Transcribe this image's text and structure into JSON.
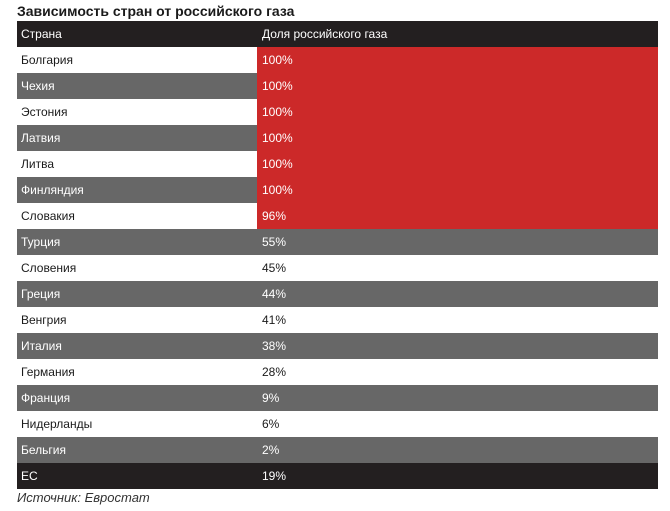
{
  "title": "Зависимость стран от российского газа",
  "header": {
    "country": "Страна",
    "share": "Доля российского газа"
  },
  "rows": [
    {
      "country": "Болгария",
      "share": "100%"
    },
    {
      "country": "Чехия",
      "share": "100%"
    },
    {
      "country": "Эстония",
      "share": "100%"
    },
    {
      "country": "Латвия",
      "share": "100%"
    },
    {
      "country": "Литва",
      "share": "100%"
    },
    {
      "country": "Финляндия",
      "share": "100%"
    },
    {
      "country": "Словакия",
      "share": "96%"
    },
    {
      "country": "Турция",
      "share": "55%"
    },
    {
      "country": "Словения",
      "share": "45%"
    },
    {
      "country": "Греция",
      "share": "44%"
    },
    {
      "country": "Венгрия",
      "share": "41%"
    },
    {
      "country": "Италия",
      "share": "38%"
    },
    {
      "country": "Германия",
      "share": "28%"
    },
    {
      "country": "Франция",
      "share": "9%"
    },
    {
      "country": "Нидерланды",
      "share": "6%"
    },
    {
      "country": "Бельгия",
      "share": "2%"
    }
  ],
  "total": {
    "country": "ЕС",
    "share": "19%"
  },
  "source": "Источник: Евростат",
  "colors": {
    "header_bg": "#231f20",
    "highlight_red": "#cc2929",
    "row_dark": "#676767",
    "row_light": "#ffffff"
  }
}
